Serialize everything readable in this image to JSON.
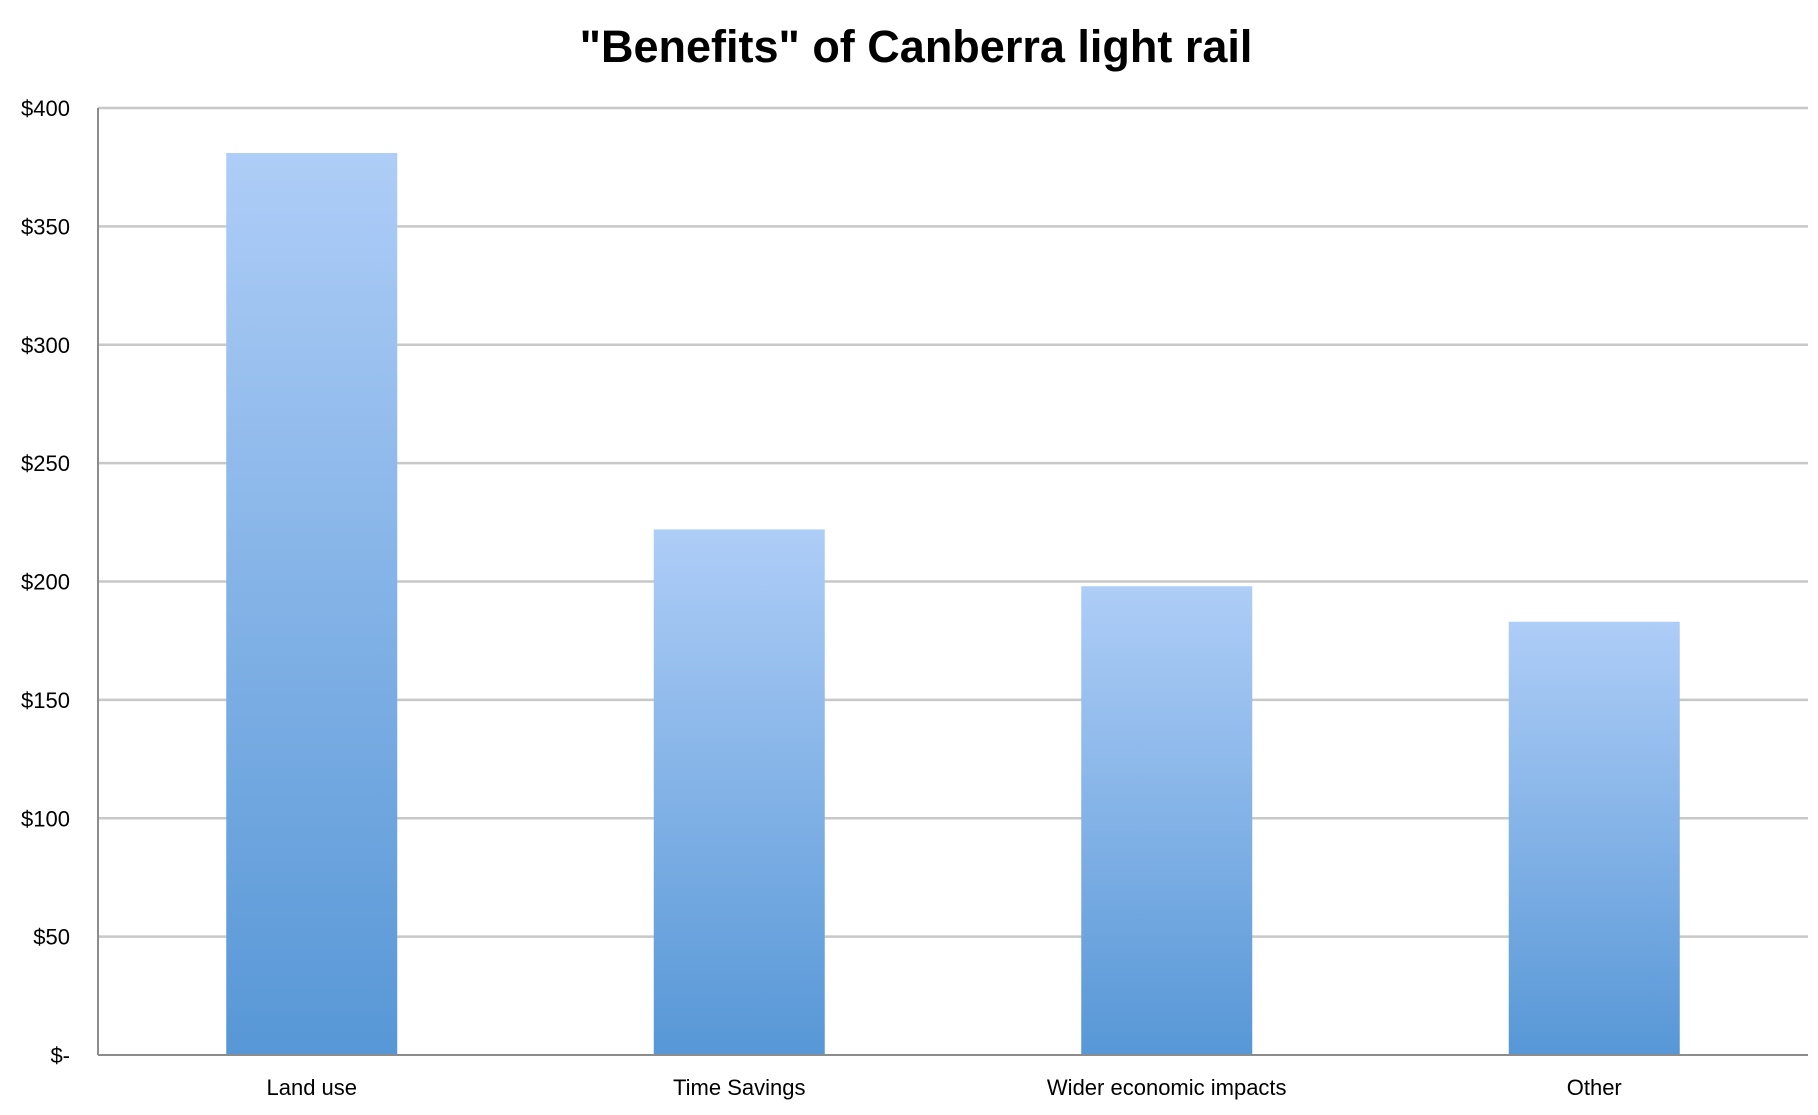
{
  "chart_data": {
    "type": "bar",
    "title": "\"Benefits\" of Canberra light rail",
    "xlabel": "",
    "ylabel": "",
    "categories": [
      "Land use",
      "Time Savings",
      "Wider economic impacts",
      "Other"
    ],
    "values": [
      381,
      222,
      198,
      183
    ],
    "ylim": [
      0,
      400
    ],
    "yticks": [
      0,
      50,
      100,
      150,
      200,
      250,
      300,
      350,
      400
    ],
    "ytick_labels": [
      "$-",
      "$50",
      "$100",
      "$150",
      "$200",
      "$250",
      "$300",
      "$350",
      "$400"
    ],
    "grid": true,
    "legend": "none",
    "colors": {
      "bar_top": "#aecdf7",
      "bar_bottom": "#5797d6",
      "grid": "#c8c8c8",
      "axis": "#8c8c8c"
    }
  }
}
